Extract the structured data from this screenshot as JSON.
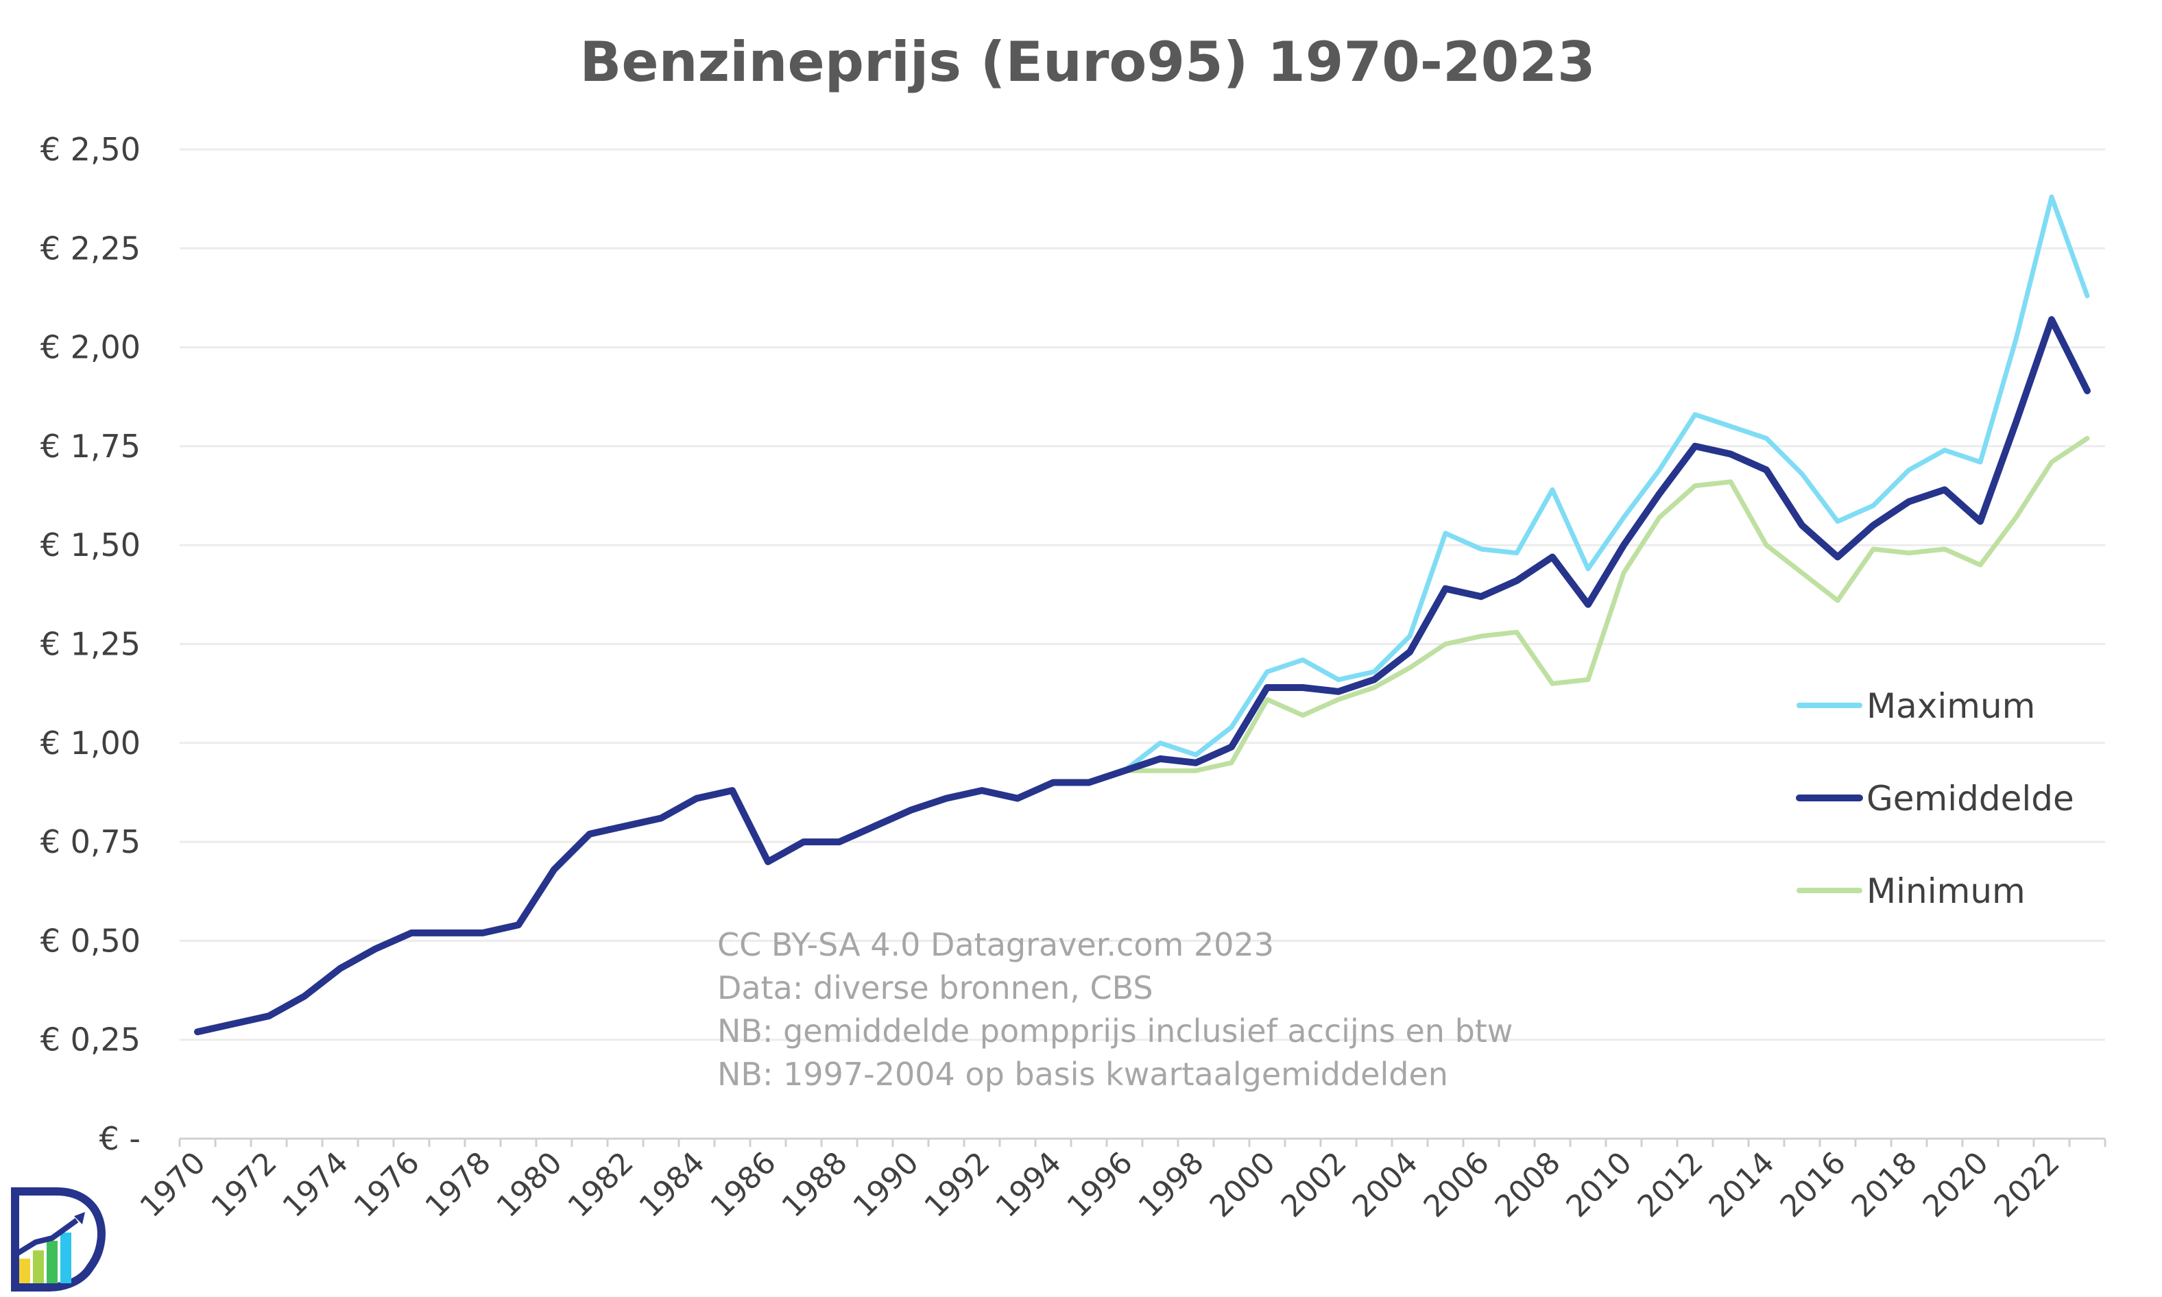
{
  "chart_data": {
    "type": "line",
    "title": "Benzineprijs (Euro95) 1970-2023",
    "xlabel": "",
    "ylabel": "",
    "ylim": [
      0,
      2.5
    ],
    "y_ticks": [
      "€ -",
      "€ 0,25",
      "€ 0,50",
      "€ 0,75",
      "€ 1,00",
      "€ 1,25",
      "€ 1,50",
      "€ 1,75",
      "€ 2,00",
      "€ 2,25",
      "€ 2,50"
    ],
    "x_tick_labels": [
      "1970",
      "1972",
      "1974",
      "1976",
      "1978",
      "1980",
      "1982",
      "1984",
      "1986",
      "1988",
      "1990",
      "1992",
      "1994",
      "1996",
      "1998",
      "2000",
      "2002",
      "2004",
      "2006",
      "2008",
      "2010",
      "2012",
      "2014",
      "2016",
      "2018",
      "2020",
      "2022"
    ],
    "x_range": [
      1970,
      2023
    ],
    "series": [
      {
        "name": "Maximum",
        "color": "#7fdcf5",
        "x": [
          1996,
          1997,
          1998,
          1999,
          2000,
          2001,
          2002,
          2003,
          2004,
          2005,
          2006,
          2007,
          2008,
          2009,
          2010,
          2011,
          2012,
          2013,
          2014,
          2015,
          2016,
          2017,
          2018,
          2019,
          2020,
          2021,
          2022,
          2023
        ],
        "values": [
          0.93,
          1.0,
          0.97,
          1.04,
          1.18,
          1.21,
          1.16,
          1.18,
          1.27,
          1.53,
          1.49,
          1.48,
          1.64,
          1.44,
          1.57,
          1.69,
          1.83,
          1.8,
          1.77,
          1.68,
          1.56,
          1.6,
          1.69,
          1.74,
          1.71,
          2.02,
          2.38,
          2.13
        ]
      },
      {
        "name": "Gemiddelde",
        "color": "#26348c",
        "x": [
          1970,
          1971,
          1972,
          1973,
          1974,
          1975,
          1976,
          1977,
          1978,
          1979,
          1980,
          1981,
          1982,
          1983,
          1984,
          1985,
          1986,
          1987,
          1988,
          1989,
          1990,
          1991,
          1992,
          1993,
          1994,
          1995,
          1996,
          1997,
          1998,
          1999,
          2000,
          2001,
          2002,
          2003,
          2004,
          2005,
          2006,
          2007,
          2008,
          2009,
          2010,
          2011,
          2012,
          2013,
          2014,
          2015,
          2016,
          2017,
          2018,
          2019,
          2020,
          2021,
          2022,
          2023
        ],
        "values": [
          0.27,
          0.29,
          0.31,
          0.36,
          0.43,
          0.48,
          0.52,
          0.52,
          0.52,
          0.54,
          0.68,
          0.77,
          0.79,
          0.81,
          0.86,
          0.88,
          0.7,
          0.75,
          0.75,
          0.79,
          0.83,
          0.86,
          0.88,
          0.86,
          0.9,
          0.9,
          0.93,
          0.96,
          0.95,
          0.99,
          1.14,
          1.14,
          1.13,
          1.16,
          1.23,
          1.39,
          1.37,
          1.41,
          1.47,
          1.35,
          1.5,
          1.63,
          1.75,
          1.73,
          1.69,
          1.55,
          1.47,
          1.55,
          1.61,
          1.64,
          1.56,
          1.81,
          2.07,
          1.89
        ]
      },
      {
        "name": "Minimum",
        "color": "#bee0a0",
        "x": [
          1996,
          1997,
          1998,
          1999,
          2000,
          2001,
          2002,
          2003,
          2004,
          2005,
          2006,
          2007,
          2008,
          2009,
          2010,
          2011,
          2012,
          2013,
          2014,
          2015,
          2016,
          2017,
          2018,
          2019,
          2020,
          2021,
          2022,
          2023
        ],
        "values": [
          0.93,
          0.93,
          0.93,
          0.95,
          1.11,
          1.07,
          1.11,
          1.14,
          1.19,
          1.25,
          1.27,
          1.28,
          1.15,
          1.16,
          1.43,
          1.57,
          1.65,
          1.66,
          1.5,
          1.43,
          1.36,
          1.49,
          1.48,
          1.49,
          1.45,
          1.57,
          1.71,
          1.77
        ]
      }
    ],
    "legend_position": "right",
    "annotations": [
      "CC BY-SA 4.0 Datagraver.com 2023",
      "Data: diverse bronnen, CBS",
      "NB: gemiddelde pompprijs inclusief accijns en btw",
      "NB: 1997-2004 op basis kwartaalgemiddelden"
    ]
  },
  "logo": {
    "name": "Datagraver",
    "colors": [
      "#26348c",
      "#2ec4f0",
      "#3fbf5a",
      "#f2d233"
    ]
  }
}
